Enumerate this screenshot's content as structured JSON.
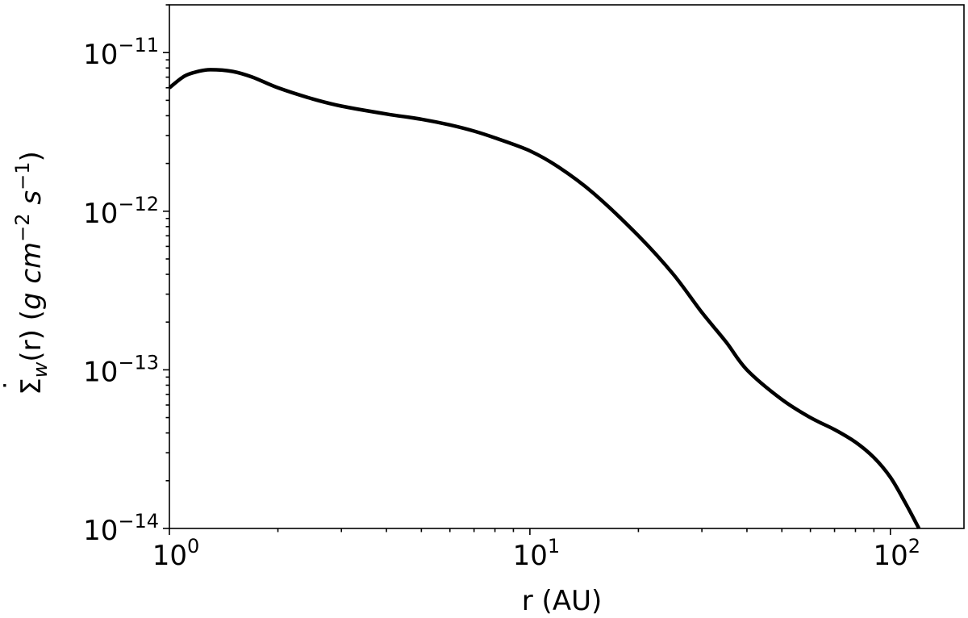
{
  "chart_data": {
    "type": "line",
    "title": "",
    "xlabel": "r (AU)",
    "ylabel": "Σ̇_w(r) (g cm^-2 s^-1)",
    "ylabel_parts": {
      "sigma": "Σ",
      "dot": "˙",
      "sub": "w",
      "r_part": "(r) (",
      "g": "g",
      "cm": "cm",
      "cm_exp": "−2",
      "s": "s",
      "s_exp": "−1",
      "close": ")"
    },
    "xscale": "log",
    "yscale": "log",
    "xlim": [
      1,
      160
    ],
    "ylim": [
      1e-14,
      2e-11
    ],
    "grid": false,
    "line_color": "#000000",
    "x_ticks": [
      {
        "value": 1,
        "base": "10",
        "exp": "0"
      },
      {
        "value": 10,
        "base": "10",
        "exp": "1"
      },
      {
        "value": 100,
        "base": "10",
        "exp": "2"
      }
    ],
    "y_ticks": [
      {
        "value": 1e-14,
        "base": "10",
        "exp": "−14"
      },
      {
        "value": 1e-13,
        "base": "10",
        "exp": "−13"
      },
      {
        "value": 1e-12,
        "base": "10",
        "exp": "−12"
      },
      {
        "value": 1e-11,
        "base": "10",
        "exp": "−11"
      }
    ],
    "series": [
      {
        "x": [
          1.0,
          1.1,
          1.2,
          1.3,
          1.5,
          1.7,
          2.0,
          2.5,
          3.0,
          4.0,
          5.0,
          6.0,
          7.0,
          8.0,
          10.0,
          12.0,
          15.0,
          20.0,
          25.0,
          30.0,
          35.0,
          40.0,
          50.0,
          60.0,
          70.0,
          80.0,
          90.0,
          100.0,
          110.0,
          120.0
        ],
        "y": [
          6e-12,
          7.1e-12,
          7.6e-12,
          7.8e-12,
          7.6e-12,
          7e-12,
          6e-12,
          5.1e-12,
          4.6e-12,
          4.1e-12,
          3.8e-12,
          3.5e-12,
          3.2e-12,
          2.9e-12,
          2.4e-12,
          1.9e-12,
          1.3e-12,
          7e-13,
          4e-13,
          2.3e-13,
          1.5e-13,
          1e-13,
          6.5e-14,
          5e-14,
          4.2e-14,
          3.5e-14,
          2.8e-14,
          2.1e-14,
          1.45e-14,
          1e-14
        ]
      }
    ]
  }
}
